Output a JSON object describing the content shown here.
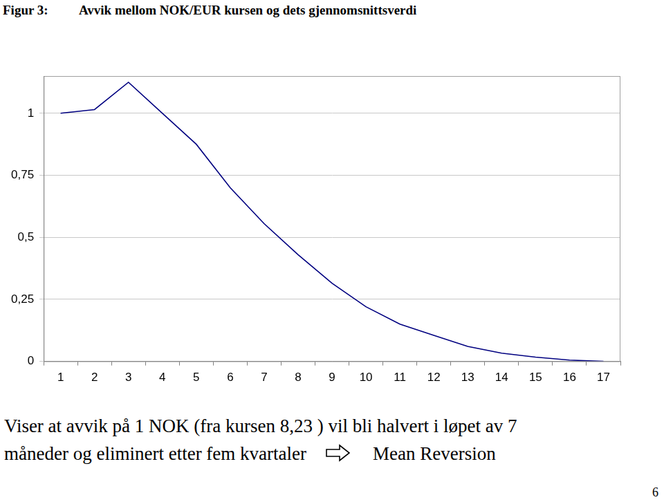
{
  "chart_data": {
    "type": "line",
    "label": "Figur 3:",
    "title": "Avvik mellom NOK/EUR kursen og dets gjennomsnittsverdi",
    "categories": [
      1,
      2,
      3,
      4,
      5,
      6,
      7,
      8,
      9,
      10,
      11,
      12,
      13,
      14,
      15,
      16,
      17
    ],
    "values": [
      1.0,
      1.015,
      1.125,
      1.0,
      0.875,
      0.7,
      0.555,
      0.43,
      0.315,
      0.22,
      0.15,
      0.105,
      0.06,
      0.033,
      0.017,
      0.005,
      0.0
    ],
    "color": "#000080",
    "ylim": [
      0,
      1.15
    ],
    "yticks": [
      0,
      {
        "value": 0.25,
        "label": "0,25"
      },
      {
        "value": 0.5,
        "label": "0,5"
      },
      {
        "value": 0.75,
        "label": "0,75"
      },
      1
    ],
    "grid": true,
    "annotations": [
      "Viser at avvik på 1 NOK (fra kursen 8,23 ) vil bli halvert i løpet av 7",
      "måneder og eliminert etter fem kvartaler",
      "Mean Reversion"
    ],
    "page_number": "6"
  }
}
